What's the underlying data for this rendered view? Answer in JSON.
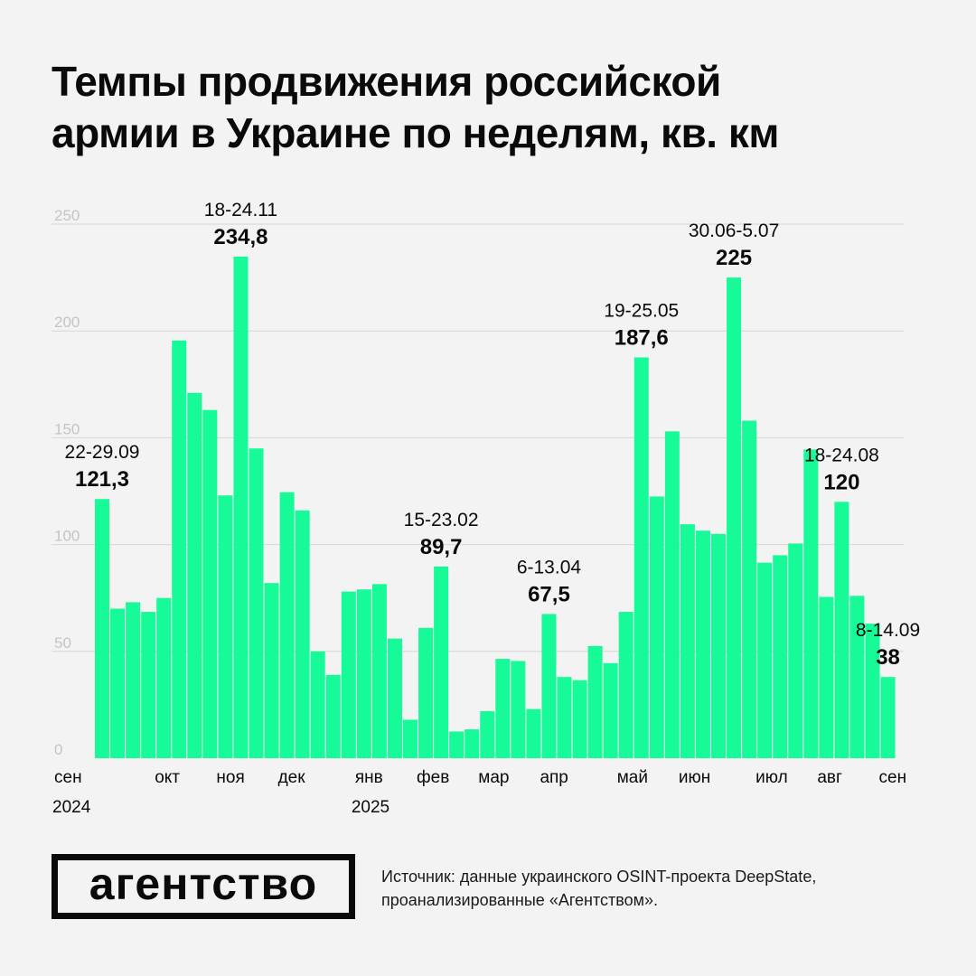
{
  "title": {
    "line1": "Темпы продвижения российской",
    "line2": "армии в Украине по неделям, кв. км"
  },
  "colors": {
    "bar": "#16fa98",
    "background": "#f3f3f3",
    "grid": "#d6d6d6",
    "text": "#0a0a0a",
    "axis_text": "#c4c4c4"
  },
  "chart_data": {
    "type": "bar",
    "title": "Темпы продвижения российской армии в Украине по неделям, кв. км",
    "xlabel": "",
    "ylabel": "",
    "ylim": [
      0,
      250
    ],
    "yticks": [
      0,
      50,
      100,
      150,
      200,
      250
    ],
    "grid": true,
    "values": [
      121.3,
      70,
      73,
      68.5,
      75,
      195.5,
      171,
      163,
      123,
      234.8,
      145,
      82,
      124.5,
      116,
      50,
      39,
      78,
      79,
      81.5,
      56,
      18,
      61,
      89.7,
      12.5,
      13.5,
      22,
      46.5,
      45.5,
      23,
      67.5,
      38,
      36.5,
      52.5,
      44.5,
      68.5,
      187.6,
      122.5,
      153,
      109.5,
      106.5,
      105,
      225,
      158,
      91.5,
      95,
      100.5,
      144.5,
      75.5,
      120,
      76,
      63,
      38
    ],
    "month_labels": [
      {
        "label": "сен",
        "week": 0
      },
      {
        "label": "окт",
        "week": 4
      },
      {
        "label": "ноя",
        "week": 8
      },
      {
        "label": "дек",
        "week": 12
      },
      {
        "label": "янв",
        "week": 17
      },
      {
        "label": "фев",
        "week": 21
      },
      {
        "label": "мар",
        "week": 25
      },
      {
        "label": "апр",
        "week": 29
      },
      {
        "label": "май",
        "week": 34
      },
      {
        "label": "июн",
        "week": 38
      },
      {
        "label": "июл",
        "week": 43
      },
      {
        "label": "авг",
        "week": 47
      },
      {
        "label": "сен",
        "week": 51
      }
    ],
    "year_labels": [
      {
        "label": "2024",
        "week": 0
      },
      {
        "label": "2025",
        "week": 17
      }
    ],
    "annotations": [
      {
        "index": 0,
        "date": "22-29.09",
        "value": "121,3"
      },
      {
        "index": 9,
        "date": "18-24.11",
        "value": "234,8"
      },
      {
        "index": 22,
        "date": "15-23.02",
        "value": "89,7"
      },
      {
        "index": 29,
        "date": "6-13.04",
        "value": "67,5"
      },
      {
        "index": 35,
        "date": "19-25.05",
        "value": "187,6"
      },
      {
        "index": 41,
        "date": "30.06-5.07",
        "value": "225"
      },
      {
        "index": 48,
        "date": "18-24.08",
        "value": "120"
      },
      {
        "index": 51,
        "date": "8-14.09",
        "value": "38"
      }
    ]
  },
  "logo": "агентство",
  "source": {
    "line1": "Источник: данные украинского OSINT-проекта DeepState,",
    "line2": "проанализированные «Агентством»."
  }
}
